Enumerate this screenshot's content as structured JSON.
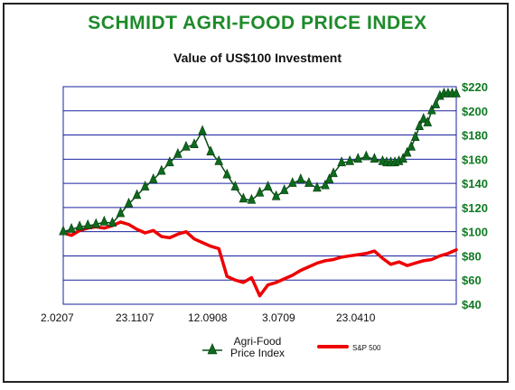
{
  "header": {
    "title": "SCHMIDT AGRI-FOOD PRICE INDEX",
    "subtitle": "Value of US$100 Investment"
  },
  "legend": {
    "agri_line1": "Agri-Food",
    "agri_line2": "Price Index",
    "sp": "S&P 500"
  },
  "colors": {
    "title": "#1e8a2a",
    "agri_marker": "#0d6b1c",
    "agri_line": "#0a4a12",
    "sp_line": "#ee0000",
    "grid": "#1a22a0",
    "axis_label": "#0f7a22"
  },
  "chart_data": {
    "type": "line",
    "title": "SCHMIDT AGRI-FOOD PRICE INDEX",
    "subtitle": "Value of US$100 Investment",
    "xlabel": "",
    "ylabel": "",
    "x_ticks": [
      "2.0207",
      "23.1107",
      "12.0908",
      "3.0709",
      "23.0410"
    ],
    "y_ticks": [
      "$40",
      "$60",
      "$80",
      "$100",
      "$120",
      "$140",
      "$160",
      "$180",
      "$200",
      "$220"
    ],
    "ylim": [
      40,
      220
    ],
    "y_axis_side": "right",
    "grid": "horizontal",
    "legend_position": "bottom",
    "x_index_range": [
      0,
      64
    ],
    "x_tick_index": [
      0,
      16,
      32,
      48,
      64
    ],
    "series": [
      {
        "name": "Agri-Food Price Index",
        "marker": "triangle",
        "x": [
          0,
          2,
          4,
          6,
          8,
          10,
          12,
          14,
          16,
          18,
          20,
          22,
          24,
          26,
          28,
          30,
          32,
          34,
          36,
          38,
          40,
          42,
          44,
          46,
          48,
          50,
          52,
          54,
          56,
          58,
          60,
          62,
          64,
          65,
          66,
          68,
          70,
          72,
          74,
          76,
          78,
          79,
          80,
          81,
          82,
          83,
          84,
          85,
          86,
          87,
          88,
          89,
          90,
          91,
          92,
          93,
          94,
          95,
          96
        ],
        "y": [
          100,
          102,
          104,
          105,
          106,
          108,
          107,
          115,
          123,
          130,
          137,
          143,
          150,
          157,
          164,
          170,
          172,
          183,
          166,
          158,
          147,
          137,
          127,
          126,
          132,
          137,
          129,
          134,
          140,
          143,
          140,
          136,
          138,
          143,
          148,
          157,
          158,
          160,
          162,
          160,
          158,
          157,
          157,
          157,
          158,
          160,
          165,
          170,
          178,
          187,
          193,
          190,
          200,
          205,
          212,
          214,
          214,
          214,
          214
        ]
      },
      {
        "name": "S&P 500",
        "marker": "none",
        "x": [
          0,
          2,
          4,
          6,
          8,
          10,
          12,
          14,
          16,
          18,
          20,
          22,
          24,
          26,
          28,
          30,
          32,
          34,
          36,
          38,
          40,
          42,
          44,
          46,
          48,
          50,
          52,
          54,
          56,
          58,
          60,
          62,
          64,
          66,
          68,
          70,
          72,
          74,
          76,
          78,
          80,
          82,
          84,
          86,
          88,
          90,
          92,
          94,
          96
        ],
        "y": [
          99,
          97,
          101,
          103,
          104,
          103,
          105,
          108,
          106,
          102,
          99,
          101,
          96,
          95,
          98,
          100,
          94,
          91,
          88,
          86,
          63,
          60,
          58,
          62,
          47,
          56,
          58,
          61,
          64,
          68,
          71,
          74,
          76,
          77,
          79,
          80,
          81,
          82,
          84,
          78,
          73,
          75,
          72,
          74,
          76,
          77,
          80,
          82,
          85
        ]
      }
    ]
  }
}
